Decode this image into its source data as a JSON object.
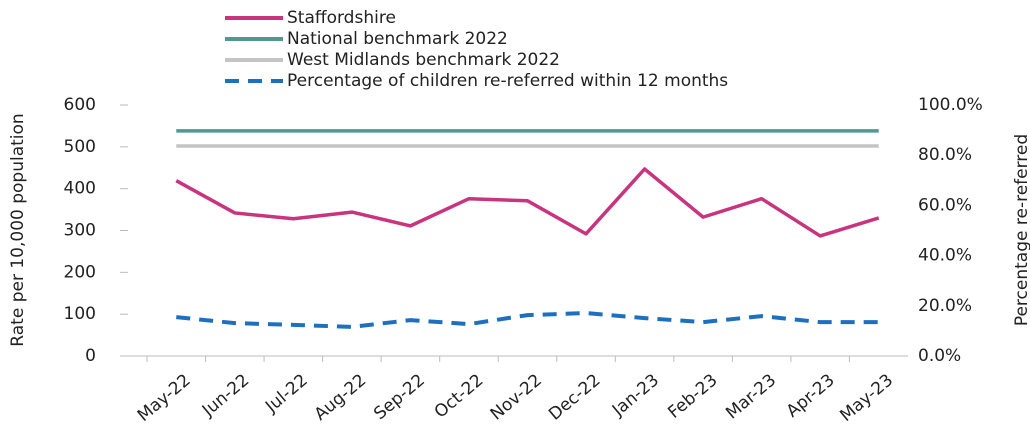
{
  "chart_data": {
    "type": "line",
    "categories": [
      "May-22",
      "Jun-22",
      "Jul-22",
      "Aug-22",
      "Sep-22",
      "Oct-22",
      "Nov-22",
      "Dec-22",
      "Jan-23",
      "Feb-23",
      "Mar-23",
      "Apr-23",
      "May-23"
    ],
    "series": [
      {
        "name": "Staffordshire",
        "color": "#c8357f",
        "values": [
          419,
          342,
          328,
          344,
          311,
          376,
          371,
          292,
          447,
          332,
          376,
          287,
          330
        ]
      },
      {
        "name": "National benchmark 2022",
        "color": "#4f9a90",
        "values": [
          538,
          538,
          538,
          538,
          538,
          538,
          538,
          538,
          538,
          538,
          538,
          538,
          538
        ]
      },
      {
        "name": "West Midlands benchmark 2022",
        "color": "#c4c4c4",
        "values": [
          502,
          502,
          502,
          502,
          502,
          502,
          502,
          502,
          502,
          502,
          502,
          502,
          502
        ]
      },
      {
        "name": "Percentage of children re-referred within 12 months",
        "color": "#1f6fbf",
        "style": "dashed",
        "axis": "y2",
        "values": [
          15.5,
          13.1,
          12.4,
          11.6,
          14.3,
          12.7,
          16.3,
          17.1,
          15.1,
          13.5,
          15.9,
          13.5,
          13.5
        ]
      }
    ],
    "ylabel": "Rate per 10,000 population",
    "y2label": "Percentage re-referred",
    "ylim": [
      0,
      600
    ],
    "yticks": [
      0,
      100,
      200,
      300,
      400,
      500,
      600
    ],
    "y2lim": [
      0,
      100
    ],
    "y2ticks": [
      {
        "value": 0,
        "label": "0.0%"
      },
      {
        "value": 20,
        "label": "20.0%"
      },
      {
        "value": 40,
        "label": "40.0%"
      },
      {
        "value": 60,
        "label": "60.0%"
      },
      {
        "value": 80,
        "label": "80.0%"
      },
      {
        "value": 100,
        "label": "100.0%"
      }
    ],
    "legend": "top"
  }
}
